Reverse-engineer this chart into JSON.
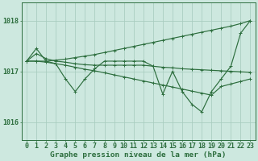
{
  "x": [
    0,
    1,
    2,
    3,
    4,
    5,
    6,
    7,
    8,
    9,
    10,
    11,
    12,
    13,
    14,
    15,
    16,
    17,
    18,
    19,
    20,
    21,
    22,
    23
  ],
  "line_main": [
    1017.2,
    1017.45,
    1017.2,
    1017.15,
    1016.85,
    1016.6,
    1016.85,
    1017.05,
    1017.2,
    1017.2,
    1017.2,
    1017.2,
    1017.2,
    1017.1,
    1016.55,
    1017.0,
    1016.6,
    1016.35,
    1016.2,
    1016.6,
    1016.85,
    1017.1,
    1017.75,
    1018.0
  ],
  "line_diag_up": [
    1017.2,
    1017.2,
    1017.2,
    1017.22,
    1017.24,
    1017.27,
    1017.3,
    1017.33,
    1017.37,
    1017.41,
    1017.45,
    1017.49,
    1017.53,
    1017.57,
    1017.61,
    1017.65,
    1017.69,
    1017.73,
    1017.77,
    1017.81,
    1017.85,
    1017.89,
    1017.94,
    1018.0
  ],
  "line_diag_down": [
    1017.2,
    1017.2,
    1017.18,
    1017.15,
    1017.12,
    1017.08,
    1017.04,
    1017.01,
    1016.97,
    1016.93,
    1016.89,
    1016.85,
    1016.81,
    1016.77,
    1016.73,
    1016.69,
    1016.65,
    1016.61,
    1016.57,
    1016.53,
    1016.7,
    1016.75,
    1016.8,
    1016.85
  ],
  "line_flat": [
    1017.2,
    1017.35,
    1017.25,
    1017.2,
    1017.18,
    1017.15,
    1017.13,
    1017.12,
    1017.12,
    1017.12,
    1017.12,
    1017.12,
    1017.12,
    1017.1,
    1017.08,
    1017.07,
    1017.05,
    1017.04,
    1017.03,
    1017.02,
    1017.01,
    1017.0,
    1016.99,
    1016.98
  ],
  "bg_color": "#cde8df",
  "grid_color": "#a8ccbf",
  "line_color": "#2d6e3e",
  "xlabel": "Graphe pression niveau de la mer (hPa)",
  "ylim": [
    1015.65,
    1018.35
  ],
  "yticks": [
    1016,
    1017,
    1018
  ],
  "xlabel_fontsize": 6.8,
  "tick_fontsize": 6.0
}
